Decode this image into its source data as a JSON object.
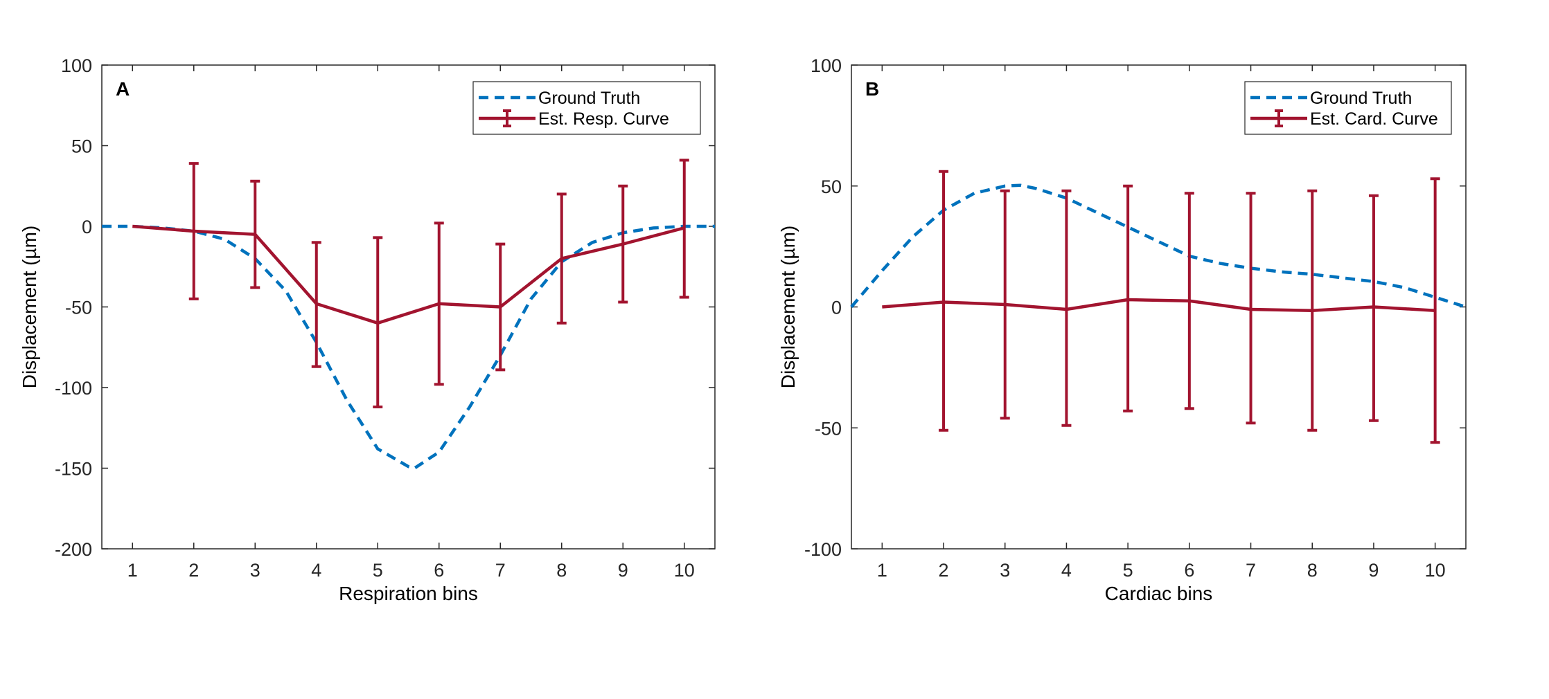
{
  "colors": {
    "ground_truth": "#0072BD",
    "estimate": "#A2142F",
    "axis": "#262626"
  },
  "chart_data": [
    {
      "type": "line",
      "panel_label": "A",
      "xlabel": "Respiration bins",
      "ylabel": "Displacement (µm)",
      "xlim": [
        0.5,
        10.5
      ],
      "ylim": [
        -200,
        100
      ],
      "xticks": [
        "1",
        "2",
        "3",
        "4",
        "5",
        "6",
        "7",
        "8",
        "9",
        "10"
      ],
      "yticks": [
        "100",
        "50",
        "0",
        "-50",
        "-100",
        "-150",
        "-200"
      ],
      "legend_position": "top-right",
      "series": [
        {
          "name": "Ground Truth",
          "style": "dashed",
          "x": [
            0.5,
            1,
            1.5,
            2,
            2.5,
            3,
            3.5,
            4,
            4.5,
            5,
            5.5,
            5.6,
            6,
            6.5,
            7,
            7.5,
            8,
            8.5,
            9,
            9.5,
            10,
            10.5
          ],
          "y": [
            0,
            0,
            -1,
            -3,
            -8,
            -20,
            -40,
            -72,
            -108,
            -138,
            -149,
            -150,
            -140,
            -112,
            -80,
            -45,
            -22,
            -10,
            -4,
            -1,
            0,
            0
          ]
        },
        {
          "name": "Est. Resp. Curve",
          "style": "solid-errorbar",
          "x": [
            1,
            2,
            3,
            4,
            5,
            6,
            7,
            8,
            9,
            10
          ],
          "y": [
            0,
            -3,
            -5,
            -48,
            -60,
            -48,
            -50,
            -20,
            -11,
            -1
          ],
          "upper": [
            0,
            39,
            28,
            -10,
            -7,
            2,
            -11,
            20,
            25,
            41
          ],
          "lower": [
            0,
            -45,
            -38,
            -87,
            -112,
            -98,
            -89,
            -60,
            -47,
            -44
          ]
        }
      ]
    },
    {
      "type": "line",
      "panel_label": "B",
      "xlabel": "Cardiac bins",
      "ylabel": "Displacement (µm)",
      "xlim": [
        0.5,
        10.5
      ],
      "ylim": [
        -100,
        100
      ],
      "xticks": [
        "1",
        "2",
        "3",
        "4",
        "5",
        "6",
        "7",
        "8",
        "9",
        "10"
      ],
      "yticks": [
        "100",
        "50",
        "0",
        "-50",
        "-100"
      ],
      "legend_position": "top-right",
      "series": [
        {
          "name": "Ground Truth",
          "style": "dashed",
          "x": [
            0.5,
            1,
            1.5,
            2,
            2.5,
            3,
            3.25,
            3.5,
            4,
            4.5,
            5,
            5.5,
            6,
            6.5,
            7,
            7.5,
            8,
            8.5,
            9,
            9.5,
            10,
            10.5
          ],
          "y": [
            0,
            15,
            29,
            40,
            47,
            50,
            50.3,
            49,
            45,
            39,
            33,
            27,
            21,
            18,
            16,
            14.5,
            13.5,
            12,
            10.5,
            8,
            4,
            0
          ]
        },
        {
          "name": "Est. Card. Curve",
          "style": "solid-errorbar",
          "x": [
            1,
            2,
            3,
            4,
            5,
            6,
            7,
            8,
            9,
            10
          ],
          "y": [
            0,
            2,
            1,
            -1,
            3,
            2.5,
            -1,
            -1.5,
            0,
            -1.5
          ],
          "upper": [
            0,
            56,
            48,
            48,
            50,
            47,
            47,
            48,
            46,
            53
          ],
          "lower": [
            0,
            -51,
            -46,
            -49,
            -43,
            -42,
            -48,
            -51,
            -47,
            -56
          ]
        }
      ]
    }
  ]
}
